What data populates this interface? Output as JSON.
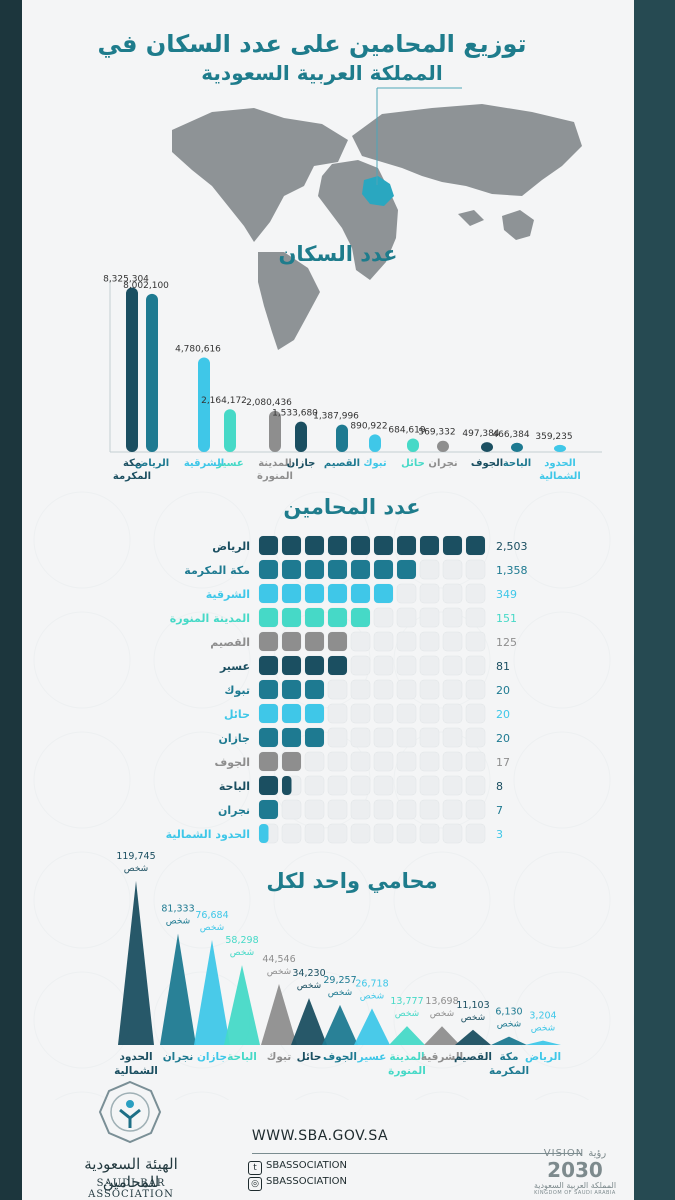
{
  "header": {
    "title_line1": "توزيع المحامين على عدد السكان في",
    "title_line2": "المملكة العربية السعودية"
  },
  "colors": {
    "navy": "#1b4f61",
    "teal_dark": "#1e7a91",
    "cyan": "#3fc7e8",
    "aqua": "#46d9c7",
    "gray": "#8e8e8e",
    "title_teal": "#1e7c8c"
  },
  "chart_data": [
    {
      "type": "bar",
      "title": "عدد السكان",
      "categories": [
        "مكة المكرمة",
        "الرياض",
        "الشرقية",
        "عسير",
        "المدينة المنورة",
        "جازان",
        "القصيم",
        "تبوك",
        "حائل",
        "نجران",
        "الجوف",
        "الباحة",
        "الحدود الشمالية"
      ],
      "values": [
        8325304,
        8002100,
        4780616,
        2164172,
        2080436,
        1533680,
        1387996,
        890922,
        684619,
        569332,
        497384,
        466384,
        359235
      ],
      "value_labels": [
        "8,325,304",
        "8,002,100",
        "4,780,616",
        "2,164,172",
        "2,080,436",
        "1,533,680",
        "1,387,996",
        "890,922",
        "684,619",
        "569,332",
        "497,384",
        "466,384",
        "359,235"
      ],
      "colors": [
        "navy",
        "teal_dark",
        "cyan",
        "aqua",
        "gray",
        "navy",
        "teal_dark",
        "cyan",
        "aqua",
        "gray",
        "navy",
        "teal_dark",
        "cyan"
      ]
    },
    {
      "type": "bar",
      "title": "عدد المحامين",
      "categories": [
        "الرياض",
        "مكة المكرمة",
        "الشرقية",
        "المدينة المنورة",
        "القصيم",
        "عسير",
        "تبوك",
        "حائل",
        "جازان",
        "الجوف",
        "الباحة",
        "نجران",
        "الحدود الشمالية"
      ],
      "values": [
        2503,
        1358,
        349,
        151,
        125,
        81,
        20,
        20,
        20,
        17,
        8,
        7,
        3
      ],
      "value_labels": [
        "2,503",
        "1,358",
        "349",
        "151",
        "125",
        "81",
        "20",
        "20",
        "20",
        "17",
        "8",
        "7",
        "3"
      ],
      "filled_squares": [
        10,
        7,
        6,
        5,
        4,
        4,
        3,
        3,
        3,
        2,
        1.5,
        1,
        0.5
      ],
      "total_squares": 10,
      "colors": [
        "navy",
        "teal_dark",
        "cyan",
        "aqua",
        "gray",
        "navy",
        "teal_dark",
        "cyan",
        "teal_dark",
        "gray",
        "navy",
        "teal_dark",
        "cyan"
      ]
    },
    {
      "type": "bar",
      "title": "محامي واحد لكل",
      "unit": "شخص",
      "categories": [
        "الحدود الشمالية",
        "نجران",
        "جازان",
        "الباحة",
        "تبوك",
        "حائل",
        "الجوف",
        "عسير",
        "المدينة المنورة",
        "الشرقية",
        "القصيم",
        "مكة المكرمة",
        "الرياض"
      ],
      "values": [
        119745,
        81333,
        76684,
        58298,
        44546,
        34230,
        29257,
        26718,
        13777,
        13698,
        11103,
        6130,
        3204
      ],
      "value_labels": [
        "119,745",
        "81,333",
        "76,684",
        "58,298",
        "44,546",
        "34,230",
        "29,257",
        "26,718",
        "13,777",
        "13,698",
        "11,103",
        "6,130",
        "3,204"
      ],
      "colors": [
        "navy",
        "teal_dark",
        "cyan",
        "aqua",
        "gray",
        "navy",
        "teal_dark",
        "cyan",
        "aqua",
        "gray",
        "navy",
        "teal_dark",
        "cyan"
      ]
    }
  ],
  "footer": {
    "url": "WWW.SBA.GOV.SA",
    "social": [
      "SBASSOCIATION",
      "SBASSOCIATION"
    ],
    "org_name_ar": "الهيئة السعودية للمحامين",
    "org_name_en": "SAUDI BAR ASSOCIATION",
    "vision_label": "VISION رؤية",
    "vision_year": "2030",
    "vision_ar": "المملكة العربية السعودية",
    "vision_en": "KINGDOM OF SAUDI ARABIA"
  }
}
